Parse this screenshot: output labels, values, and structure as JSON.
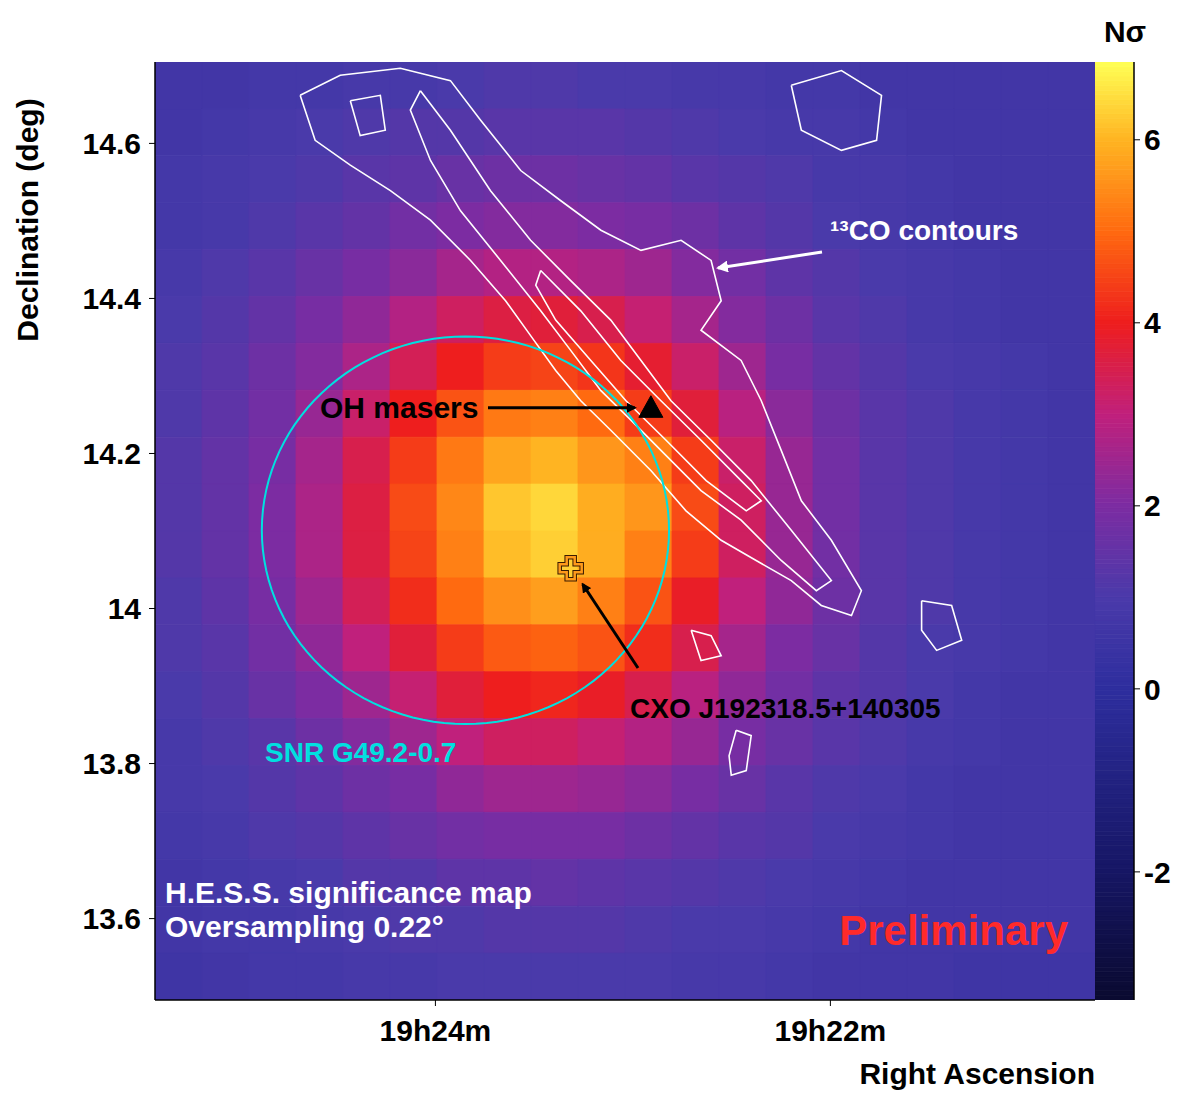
{
  "chart_data": {
    "type": "heatmap",
    "x_label": "Right Ascension",
    "y_label": "Declination (deg)",
    "xlim": [
      25.42,
      20.66
    ],
    "xticks": [
      {
        "value": 24,
        "label": "19h24m"
      },
      {
        "value": 22,
        "label": "19h22m"
      }
    ],
    "ylim": [
      13.495,
      14.705
    ],
    "yticks": [
      13.6,
      13.8,
      14,
      14.2,
      14.4,
      14.6
    ],
    "x": [
      25.301,
      25.063,
      24.825,
      24.587,
      24.349,
      24.111,
      23.873,
      23.635,
      23.397,
      23.159,
      22.921,
      22.683,
      22.445,
      22.207,
      21.969,
      21.731,
      21.493,
      21.255,
      21.017,
      20.779
    ],
    "y": [
      14.675,
      14.614,
      14.554,
      14.493,
      14.433,
      14.372,
      14.312,
      14.251,
      14.191,
      14.13,
      14.07,
      14.009,
      13.949,
      13.888,
      13.828,
      13.767,
      13.707,
      13.646,
      13.586,
      13.525
    ],
    "z": [
      [
        0.7,
        0.7,
        0.8,
        0.8,
        0.9,
        0.9,
        1.0,
        1.1,
        1.1,
        1.0,
        1.0,
        0.9,
        0.9,
        0.8,
        0.8,
        0.7,
        0.7,
        0.7,
        0.7,
        0.7
      ],
      [
        0.7,
        0.8,
        0.9,
        1.0,
        1.1,
        1.2,
        1.2,
        1.3,
        1.3,
        1.3,
        1.2,
        1.1,
        1.0,
        0.9,
        0.9,
        0.8,
        0.7,
        0.7,
        0.7,
        0.7
      ],
      [
        0.8,
        0.9,
        1.0,
        1.1,
        1.3,
        1.4,
        1.6,
        1.7,
        1.7,
        1.6,
        1.5,
        1.3,
        1.2,
        1.1,
        0.9,
        0.9,
        0.8,
        0.7,
        0.7,
        0.7
      ],
      [
        0.8,
        0.9,
        1.1,
        1.3,
        1.5,
        1.8,
        2.0,
        2.1,
        2.1,
        2.0,
        1.9,
        1.7,
        1.4,
        1.2,
        1.0,
        0.9,
        0.8,
        0.7,
        0.7,
        0.7
      ],
      [
        0.9,
        1.1,
        1.3,
        1.6,
        1.9,
        2.2,
        2.6,
        2.8,
        2.8,
        2.7,
        2.5,
        2.1,
        1.8,
        1.4,
        1.2,
        1.0,
        0.9,
        0.8,
        0.7,
        0.7
      ],
      [
        1.0,
        1.2,
        1.5,
        1.9,
        2.3,
        2.8,
        3.3,
        3.6,
        3.7,
        3.5,
        3.1,
        2.6,
        2.1,
        1.7,
        1.3,
        1.1,
        0.9,
        0.8,
        0.7,
        0.7
      ],
      [
        1.1,
        1.3,
        1.7,
        2.1,
        2.7,
        3.4,
        4.0,
        4.4,
        4.5,
        4.3,
        3.8,
        3.2,
        2.5,
        1.9,
        1.5,
        1.2,
        1.0,
        0.9,
        0.8,
        0.7
      ],
      [
        1.1,
        1.4,
        1.8,
        2.4,
        3.2,
        4.0,
        4.7,
        5.2,
        5.3,
        5.0,
        4.4,
        3.7,
        2.9,
        2.2,
        1.7,
        1.3,
        1.1,
        0.9,
        0.8,
        0.7
      ],
      [
        1.2,
        1.5,
        1.9,
        2.6,
        3.5,
        4.4,
        5.2,
        5.8,
        6.0,
        5.6,
        5.3,
        4.4,
        3.2,
        2.4,
        1.8,
        1.3,
        1.1,
        0.9,
        0.8,
        0.7
      ],
      [
        1.2,
        1.5,
        2.0,
        2.7,
        3.6,
        4.6,
        5.4,
        6.2,
        6.4,
        5.9,
        5.6,
        4.6,
        3.3,
        2.4,
        1.8,
        1.3,
        1.1,
        0.9,
        0.8,
        0.7
      ],
      [
        1.2,
        1.5,
        2.0,
        2.7,
        3.6,
        4.5,
        5.3,
        6.1,
        6.3,
        5.9,
        5.3,
        4.4,
        3.3,
        2.4,
        1.8,
        1.3,
        1.1,
        0.9,
        0.8,
        0.7
      ],
      [
        1.1,
        1.4,
        1.9,
        2.5,
        3.4,
        4.2,
        5.0,
        5.5,
        5.7,
        5.3,
        4.7,
        3.9,
        3.0,
        2.3,
        1.7,
        1.3,
        1.1,
        0.9,
        0.8,
        0.7
      ],
      [
        1.1,
        1.3,
        1.8,
        2.3,
        3.0,
        3.7,
        4.4,
        4.8,
        4.9,
        4.7,
        4.2,
        3.5,
        2.6,
        2.0,
        1.6,
        1.2,
        1.0,
        0.9,
        0.8,
        0.7
      ],
      [
        1.0,
        1.2,
        1.6,
        2.0,
        2.5,
        3.1,
        3.7,
        4.0,
        4.1,
        3.9,
        3.5,
        2.9,
        2.3,
        1.8,
        1.4,
        1.2,
        1.0,
        0.8,
        0.7,
        0.7
      ],
      [
        0.9,
        1.1,
        1.3,
        1.7,
        2.1,
        2.5,
        3.0,
        3.3,
        3.3,
        3.1,
        2.8,
        2.4,
        1.9,
        1.6,
        1.3,
        1.1,
        0.9,
        0.8,
        0.7,
        0.7
      ],
      [
        0.9,
        1.0,
        1.2,
        1.4,
        1.7,
        1.9,
        2.3,
        2.5,
        2.5,
        2.4,
        2.2,
        1.9,
        1.6,
        1.3,
        1.1,
        1.0,
        0.8,
        0.7,
        0.7,
        0.7
      ],
      [
        0.8,
        0.9,
        1.1,
        1.2,
        1.4,
        1.6,
        1.8,
        1.9,
        1.9,
        1.9,
        1.7,
        1.5,
        1.3,
        1.2,
        1.0,
        0.9,
        0.8,
        0.7,
        0.7,
        0.7
      ],
      [
        0.7,
        0.8,
        0.9,
        1.0,
        1.2,
        1.2,
        1.4,
        1.4,
        1.5,
        1.4,
        1.3,
        1.2,
        1.1,
        1.0,
        0.9,
        0.8,
        0.7,
        0.7,
        0.7,
        0.7
      ],
      [
        0.7,
        0.8,
        0.8,
        0.9,
        1.0,
        1.1,
        1.1,
        1.2,
        1.2,
        1.2,
        1.1,
        1.0,
        1.0,
        0.9,
        0.8,
        0.7,
        0.7,
        0.7,
        0.7,
        0.7
      ],
      [
        0.6,
        0.7,
        0.8,
        0.8,
        0.9,
        0.9,
        1.0,
        1.0,
        1.0,
        1.0,
        1.0,
        0.9,
        0.9,
        0.8,
        0.7,
        0.7,
        0.7,
        0.6,
        0.6,
        0.6
      ]
    ],
    "colorbar": {
      "title": "Nσ",
      "lim": [
        -3.4,
        6.85
      ],
      "ticks": [
        -2,
        0,
        2,
        4,
        6
      ]
    },
    "contours": {
      "label": "¹³CO contours",
      "color": "#ffffff",
      "paths": [
        [
          [
            24.685,
            14.662
          ],
          [
            24.482,
            14.688
          ],
          [
            24.178,
            14.697
          ],
          [
            23.924,
            14.681
          ],
          [
            23.771,
            14.63
          ],
          [
            23.568,
            14.565
          ],
          [
            23.365,
            14.526
          ],
          [
            23.162,
            14.488
          ],
          [
            22.959,
            14.462
          ],
          [
            22.756,
            14.475
          ],
          [
            22.604,
            14.449
          ],
          [
            22.553,
            14.397
          ],
          [
            22.655,
            14.359
          ],
          [
            22.452,
            14.32
          ],
          [
            22.35,
            14.268
          ],
          [
            22.249,
            14.204
          ],
          [
            22.147,
            14.139
          ],
          [
            21.995,
            14.088
          ],
          [
            21.843,
            14.023
          ],
          [
            21.893,
            13.991
          ],
          [
            22.046,
            14.004
          ],
          [
            22.198,
            14.036
          ],
          [
            22.376,
            14.062
          ],
          [
            22.553,
            14.088
          ],
          [
            22.731,
            14.126
          ],
          [
            22.909,
            14.178
          ],
          [
            23.112,
            14.23
          ],
          [
            23.264,
            14.268
          ],
          [
            23.391,
            14.307
          ],
          [
            23.518,
            14.352
          ],
          [
            23.645,
            14.397
          ],
          [
            23.822,
            14.449
          ],
          [
            24.025,
            14.501
          ],
          [
            24.228,
            14.539
          ],
          [
            24.431,
            14.572
          ],
          [
            24.609,
            14.604
          ]
        ],
        [
          [
            24.076,
            14.668
          ],
          [
            23.924,
            14.617
          ],
          [
            23.721,
            14.539
          ],
          [
            23.518,
            14.475
          ],
          [
            23.315,
            14.423
          ],
          [
            23.112,
            14.372
          ],
          [
            22.959,
            14.32
          ],
          [
            22.807,
            14.268
          ],
          [
            22.604,
            14.217
          ],
          [
            22.401,
            14.165
          ],
          [
            22.198,
            14.101
          ],
          [
            21.995,
            14.036
          ],
          [
            22.071,
            14.023
          ],
          [
            22.249,
            14.062
          ],
          [
            22.452,
            14.114
          ],
          [
            22.655,
            14.152
          ],
          [
            22.858,
            14.204
          ],
          [
            23.01,
            14.243
          ],
          [
            23.162,
            14.281
          ],
          [
            23.315,
            14.333
          ],
          [
            23.467,
            14.384
          ],
          [
            23.67,
            14.449
          ],
          [
            23.873,
            14.513
          ],
          [
            24.025,
            14.578
          ],
          [
            24.127,
            14.643
          ]
        ],
        [
          [
            23.467,
            14.436
          ],
          [
            23.264,
            14.384
          ],
          [
            23.061,
            14.32
          ],
          [
            22.858,
            14.268
          ],
          [
            22.655,
            14.217
          ],
          [
            22.452,
            14.165
          ],
          [
            22.35,
            14.139
          ],
          [
            22.426,
            14.126
          ],
          [
            22.629,
            14.165
          ],
          [
            22.832,
            14.217
          ],
          [
            23.035,
            14.268
          ],
          [
            23.213,
            14.32
          ],
          [
            23.391,
            14.372
          ],
          [
            23.492,
            14.417
          ]
        ],
        [
          [
            22.198,
            14.675
          ],
          [
            21.944,
            14.694
          ],
          [
            21.741,
            14.662
          ],
          [
            21.766,
            14.604
          ],
          [
            21.944,
            14.591
          ],
          [
            22.147,
            14.617
          ]
        ],
        [
          [
            21.538,
            14.01
          ],
          [
            21.386,
            14.004
          ],
          [
            21.335,
            13.959
          ],
          [
            21.462,
            13.946
          ],
          [
            21.538,
            13.972
          ]
        ],
        [
          [
            22.477,
            13.843
          ],
          [
            22.401,
            13.836
          ],
          [
            22.426,
            13.791
          ],
          [
            22.502,
            13.785
          ],
          [
            22.513,
            13.81
          ]
        ],
        [
          [
            22.705,
            13.972
          ],
          [
            22.604,
            13.965
          ],
          [
            22.553,
            13.939
          ],
          [
            22.655,
            13.933
          ]
        ],
        [
          [
            24.431,
            14.655
          ],
          [
            24.279,
            14.662
          ],
          [
            24.254,
            14.617
          ],
          [
            24.381,
            14.61
          ]
        ]
      ]
    },
    "snr": {
      "label": "SNR G49.2-0.7",
      "ra": 23.848,
      "dec": 14.101,
      "radius_deg": 0.25,
      "color": "#00e0e0"
    },
    "masers": {
      "label": "OH masers",
      "ra": 22.909,
      "dec": 14.259,
      "marker": "triangle",
      "color": "#000000"
    },
    "source": {
      "label": "CXO J192318.5+140305",
      "ra": 23.315,
      "dec": 14.052,
      "marker": "cross",
      "color": "#ff9a1a"
    },
    "annotations": [
      "H.E.S.S. significance map",
      "Oversampling 0.22°",
      "Preliminary"
    ]
  }
}
